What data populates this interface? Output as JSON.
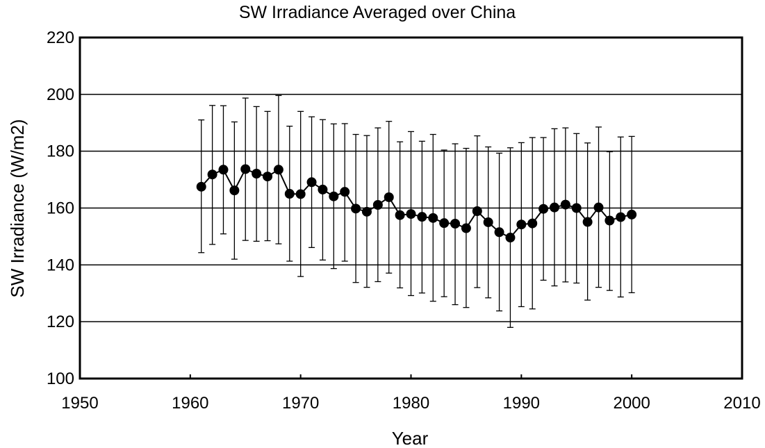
{
  "chart_data": {
    "type": "line",
    "title": "SW Irradiance Averaged over China",
    "xlabel": "Year",
    "ylabel": "SW Irradiance (W/m2)",
    "xlim": [
      1950,
      2010
    ],
    "ylim": [
      100,
      220
    ],
    "x_ticks": [
      1950,
      1960,
      1970,
      1980,
      1990,
      2000,
      2010
    ],
    "y_ticks": [
      100,
      120,
      140,
      160,
      180,
      200,
      220
    ],
    "grid": "horizontal",
    "error_bars": true,
    "series": [
      {
        "x": [
          1961,
          1962,
          1963,
          1964,
          1965,
          1966,
          1967,
          1968,
          1969,
          1970,
          1971,
          1972,
          1973,
          1974,
          1975,
          1976,
          1977,
          1978,
          1979,
          1980,
          1981,
          1982,
          1983,
          1984,
          1985,
          1986,
          1987,
          1988,
          1989,
          1990,
          1991,
          1992,
          1993,
          1994,
          1995,
          1996,
          1997,
          1998,
          1999,
          2000
        ],
        "y": [
          167.5,
          171.8,
          173.5,
          166.2,
          173.7,
          172.1,
          171.1,
          173.5,
          165.0,
          164.9,
          169.1,
          166.5,
          164.1,
          165.7,
          159.8,
          158.7,
          161.1,
          163.8,
          157.5,
          157.9,
          156.9,
          156.5,
          154.7,
          154.5,
          152.9,
          158.9,
          155.0,
          151.5,
          149.6,
          154.2,
          154.6,
          159.7,
          160.2,
          161.2,
          160.0,
          155.1,
          160.2,
          155.6,
          156.8,
          157.7
        ],
        "upper": [
          191.0,
          196.1,
          196.0,
          190.3,
          198.7,
          195.7,
          194.0,
          199.6,
          188.8,
          194.0,
          192.1,
          191.1,
          189.6,
          189.7,
          185.9,
          185.5,
          188.2,
          190.5,
          183.3,
          186.9,
          183.5,
          185.9,
          180.4,
          182.6,
          181.0,
          185.4,
          181.5,
          179.3,
          181.2,
          183.0,
          184.8,
          184.8,
          187.9,
          188.2,
          186.2,
          182.9,
          188.5,
          179.8,
          185.0,
          185.2
        ],
        "lower": [
          144.3,
          147.2,
          150.9,
          142.0,
          148.6,
          148.3,
          148.5,
          147.4,
          141.3,
          135.9,
          146.1,
          141.7,
          138.7,
          141.3,
          133.8,
          132.1,
          134.1,
          137.1,
          131.9,
          129.2,
          130.1,
          127.2,
          128.8,
          126.0,
          125.0,
          132.0,
          128.4,
          123.8,
          118.0,
          125.3,
          124.5,
          134.6,
          132.6,
          134.0,
          133.6,
          127.6,
          132.1,
          131.0,
          128.7,
          130.2
        ]
      }
    ]
  }
}
